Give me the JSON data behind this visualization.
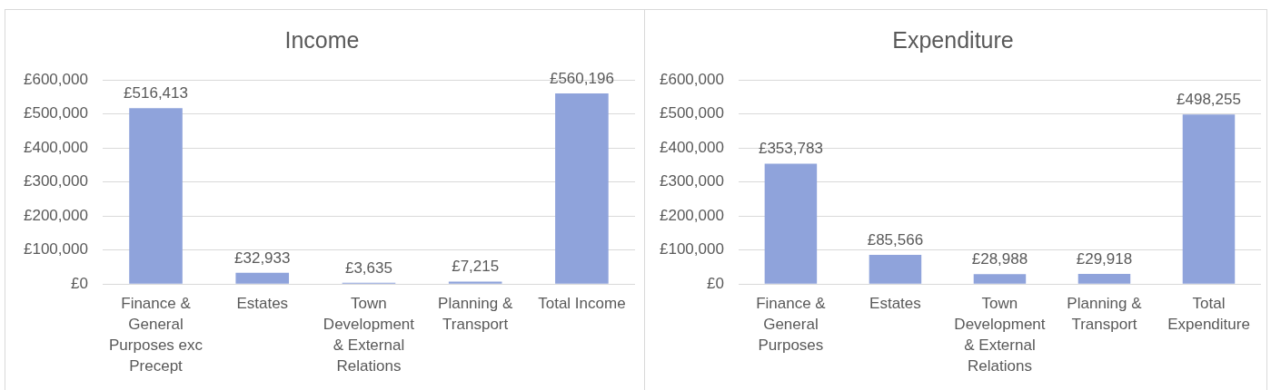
{
  "chart_data": [
    {
      "type": "bar",
      "title": "Income",
      "categories": [
        "Finance & General Purposes exc Precept",
        "Estates",
        "Town Development & External Relations",
        "Planning & Transport",
        "Total Income"
      ],
      "values": [
        516413,
        32933,
        3635,
        7215,
        560196
      ],
      "value_labels": [
        "£516,413",
        "£32,933",
        "£3,635",
        "£7,215",
        "£560,196"
      ],
      "color": "#8fa3db",
      "ylim": [
        0,
        600000
      ],
      "yticks": [
        {
          "value": 0,
          "label": "£0"
        },
        {
          "value": 100000,
          "label": "£100,000"
        },
        {
          "value": 200000,
          "label": "£200,000"
        },
        {
          "value": 300000,
          "label": "£300,000"
        },
        {
          "value": 400000,
          "label": "£400,000"
        },
        {
          "value": 500000,
          "label": "£500,000"
        },
        {
          "value": 600000,
          "label": "£600,000"
        }
      ],
      "grid": "y"
    },
    {
      "type": "bar",
      "title": "Expenditure",
      "categories": [
        "Finance & General Purposes",
        "Estates",
        "Town Development & External Relations",
        "Planning & Transport",
        "Total Expenditure"
      ],
      "values": [
        353783,
        85566,
        28988,
        29918,
        498255
      ],
      "value_labels": [
        "£353,783",
        "£85,566",
        "£28,988",
        "£29,918",
        "£498,255"
      ],
      "color": "#8fa3db",
      "ylim": [
        0,
        600000
      ],
      "yticks": [
        {
          "value": 0,
          "label": "£0"
        },
        {
          "value": 100000,
          "label": "£100,000"
        },
        {
          "value": 200000,
          "label": "£200,000"
        },
        {
          "value": 300000,
          "label": "£300,000"
        },
        {
          "value": 400000,
          "label": "£400,000"
        },
        {
          "value": 500000,
          "label": "£500,000"
        },
        {
          "value": 600000,
          "label": "£600,000"
        }
      ],
      "grid": "y"
    }
  ]
}
